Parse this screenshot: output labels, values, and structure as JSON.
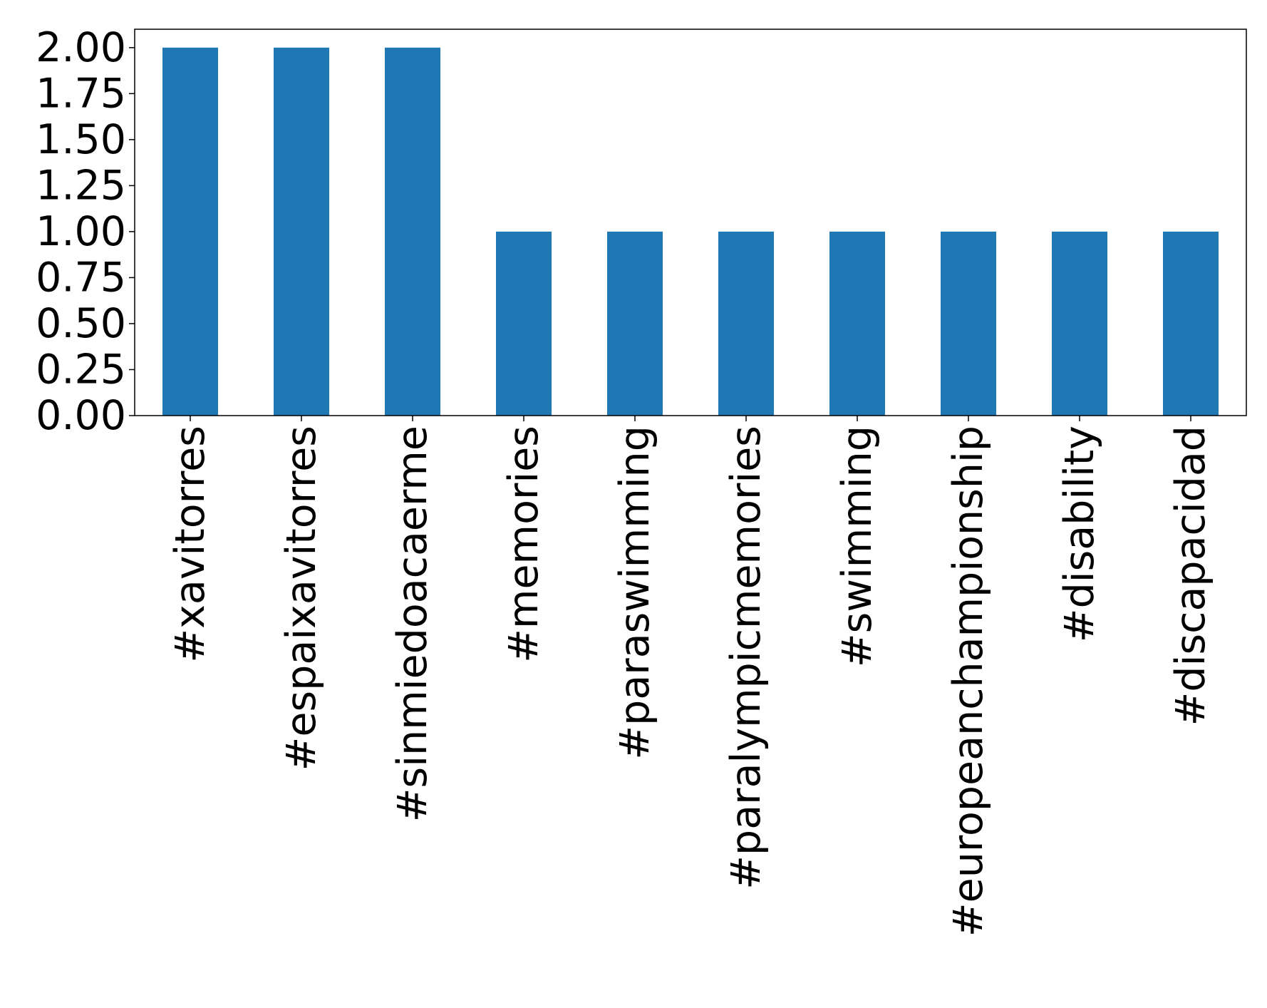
{
  "chart_data": {
    "type": "bar",
    "categories": [
      "#xavitorres",
      "#espaixavitorres",
      "#sinmiedoacaerme",
      "#memories",
      "#paraswimming",
      "#paralympicmemories",
      "#swimming",
      "#europeanchampionship",
      "#disability",
      "#discapacidad"
    ],
    "values": [
      2,
      2,
      2,
      1,
      1,
      1,
      1,
      1,
      1,
      1
    ],
    "color": "#1f77b4",
    "ylim": [
      0,
      2.1
    ],
    "yticks": [
      {
        "value": 0,
        "label": "0.00"
      },
      {
        "value": 0.25,
        "label": "0.25"
      },
      {
        "value": 0.5,
        "label": "0.50"
      },
      {
        "value": 0.75,
        "label": "0.75"
      },
      {
        "value": 1,
        "label": "1.00"
      },
      {
        "value": 1.25,
        "label": "1.25"
      },
      {
        "value": 1.5,
        "label": "1.50"
      },
      {
        "value": 1.75,
        "label": "1.75"
      },
      {
        "value": 2,
        "label": "2.00"
      }
    ],
    "grid": false
  }
}
